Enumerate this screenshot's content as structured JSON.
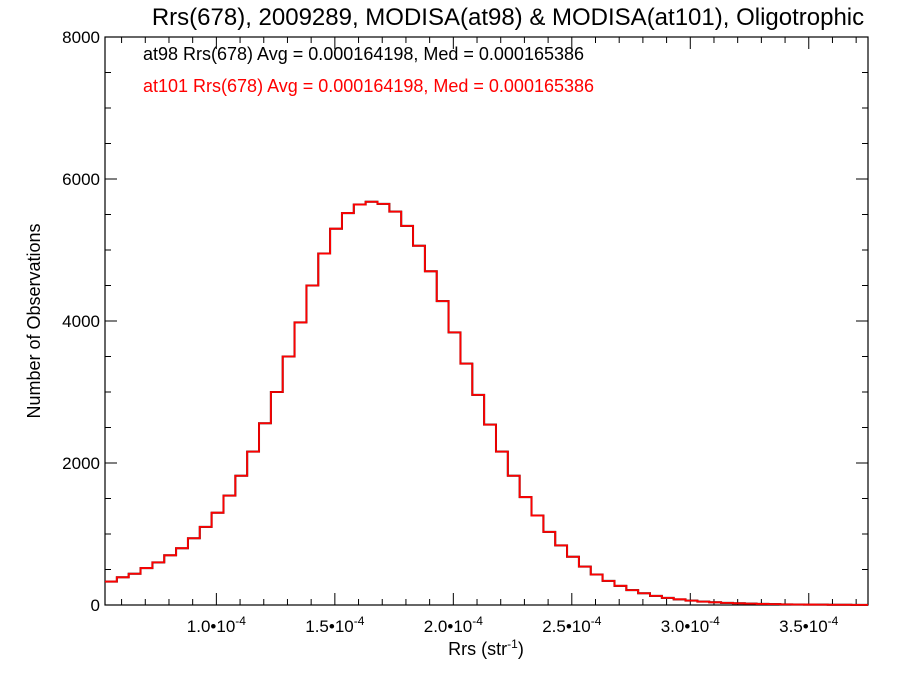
{
  "chart_data": {
    "type": "line",
    "step": true,
    "title": "Rrs(678), 2009289, MODISA(at98) & MODISA(at101), Oligotrophic",
    "xlabel": "Rrs (str",
    "xlabel_sup": "-1",
    "xlabel_close": ")",
    "ylabel": "Number of Observations",
    "xlim": [
      5.3e-05,
      0.000375
    ],
    "ylim": [
      0,
      8000
    ],
    "x_ticks": [
      {
        "value": 0.0001,
        "mantissa": "1.0•10",
        "exp": "-4"
      },
      {
        "value": 0.00015,
        "mantissa": "1.5•10",
        "exp": "-4"
      },
      {
        "value": 0.0002,
        "mantissa": "2.0•10",
        "exp": "-4"
      },
      {
        "value": 0.00025,
        "mantissa": "2.5•10",
        "exp": "-4"
      },
      {
        "value": 0.0003,
        "mantissa": "3.0•10",
        "exp": "-4"
      },
      {
        "value": 0.00035,
        "mantissa": "3.5•10",
        "exp": "-4"
      }
    ],
    "y_ticks": [
      0,
      2000,
      4000,
      6000,
      8000
    ],
    "colors": {
      "at98": "#000000",
      "at101": "#ff0000"
    },
    "annotations": [
      {
        "key": "at98",
        "text": "at98 Rrs(678) Avg = 0.000164198, Med = 0.000165386",
        "color": "#000000"
      },
      {
        "key": "at101",
        "text": "at101 Rrs(678) Avg = 0.000164198, Med = 0.000165386",
        "color": "#ff0000"
      }
    ],
    "series": [
      {
        "name": "at98",
        "color": "#000000",
        "x": [
          5.3e-05,
          5.8e-05,
          6.3e-05,
          6.8e-05,
          7.3e-05,
          7.8e-05,
          8.3e-05,
          8.8e-05,
          9.3e-05,
          9.8e-05,
          0.000103,
          0.000108,
          0.000113,
          0.000118,
          0.000123,
          0.000128,
          0.000133,
          0.000138,
          0.000143,
          0.000148,
          0.000153,
          0.000158,
          0.000163,
          0.000168,
          0.000173,
          0.000178,
          0.000183,
          0.000188,
          0.000193,
          0.000198,
          0.000203,
          0.000208,
          0.000213,
          0.000218,
          0.000223,
          0.000228,
          0.000233,
          0.000238,
          0.000243,
          0.000248,
          0.000253,
          0.000258,
          0.000263,
          0.000268,
          0.000273,
          0.000278,
          0.000283,
          0.000288,
          0.000293,
          0.000298,
          0.000303,
          0.000308,
          0.000313,
          0.000318,
          0.000323,
          0.000328,
          0.000333,
          0.000338,
          0.000343,
          0.000348,
          0.000353,
          0.000358,
          0.000363,
          0.000368,
          0.000373
        ],
        "values": [
          330,
          390,
          440,
          520,
          600,
          700,
          800,
          940,
          1100,
          1300,
          1540,
          1820,
          2160,
          2560,
          3000,
          3500,
          3980,
          4500,
          4950,
          5300,
          5520,
          5640,
          5680,
          5650,
          5540,
          5340,
          5060,
          4700,
          4280,
          3840,
          3400,
          2960,
          2540,
          2160,
          1820,
          1520,
          1260,
          1030,
          840,
          680,
          540,
          430,
          340,
          270,
          210,
          165,
          128,
          100,
          80,
          62,
          48,
          38,
          30,
          24,
          19,
          15,
          12,
          9,
          7,
          6,
          5,
          4,
          3,
          2,
          2
        ]
      },
      {
        "name": "at101",
        "color": "#ff0000",
        "x": [
          5.3e-05,
          5.8e-05,
          6.3e-05,
          6.8e-05,
          7.3e-05,
          7.8e-05,
          8.3e-05,
          8.8e-05,
          9.3e-05,
          9.8e-05,
          0.000103,
          0.000108,
          0.000113,
          0.000118,
          0.000123,
          0.000128,
          0.000133,
          0.000138,
          0.000143,
          0.000148,
          0.000153,
          0.000158,
          0.000163,
          0.000168,
          0.000173,
          0.000178,
          0.000183,
          0.000188,
          0.000193,
          0.000198,
          0.000203,
          0.000208,
          0.000213,
          0.000218,
          0.000223,
          0.000228,
          0.000233,
          0.000238,
          0.000243,
          0.000248,
          0.000253,
          0.000258,
          0.000263,
          0.000268,
          0.000273,
          0.000278,
          0.000283,
          0.000288,
          0.000293,
          0.000298,
          0.000303,
          0.000308,
          0.000313,
          0.000318,
          0.000323,
          0.000328,
          0.000333,
          0.000338,
          0.000343,
          0.000348,
          0.000353,
          0.000358,
          0.000363,
          0.000368,
          0.000373
        ],
        "values": [
          330,
          390,
          440,
          520,
          600,
          700,
          800,
          940,
          1100,
          1300,
          1540,
          1820,
          2160,
          2560,
          3000,
          3500,
          3980,
          4500,
          4950,
          5300,
          5520,
          5640,
          5680,
          5650,
          5540,
          5340,
          5060,
          4700,
          4280,
          3840,
          3400,
          2960,
          2540,
          2160,
          1820,
          1520,
          1260,
          1030,
          840,
          680,
          540,
          430,
          340,
          270,
          210,
          165,
          128,
          100,
          80,
          62,
          48,
          38,
          30,
          24,
          19,
          15,
          12,
          9,
          7,
          6,
          5,
          4,
          3,
          2,
          2
        ]
      }
    ]
  }
}
